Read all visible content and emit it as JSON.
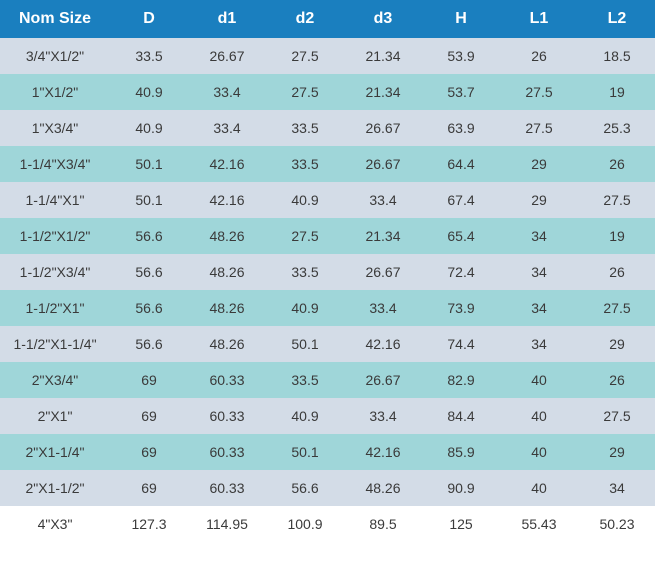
{
  "table": {
    "header_bg": "#1a7fbf",
    "header_color": "#ffffff",
    "row_even_bg": "#d3dce7",
    "row_odd_bg": "#9fd6d9",
    "row_last_bg": "#ffffff",
    "text_color": "#3a3a3a",
    "header_fontsize": 16,
    "cell_fontsize": 14,
    "columns": [
      "Nom Size",
      "D",
      "d1",
      "d2",
      "d3",
      "H",
      "L1",
      "L2"
    ],
    "rows": [
      [
        "3/4\"X1/2\"",
        "33.5",
        "26.67",
        "27.5",
        "21.34",
        "53.9",
        "26",
        "18.5"
      ],
      [
        "1\"X1/2\"",
        "40.9",
        "33.4",
        "27.5",
        "21.34",
        "53.7",
        "27.5",
        "19"
      ],
      [
        "1\"X3/4\"",
        "40.9",
        "33.4",
        "33.5",
        "26.67",
        "63.9",
        "27.5",
        "25.3"
      ],
      [
        "1-1/4\"X3/4\"",
        "50.1",
        "42.16",
        "33.5",
        "26.67",
        "64.4",
        "29",
        "26"
      ],
      [
        "1-1/4\"X1\"",
        "50.1",
        "42.16",
        "40.9",
        "33.4",
        "67.4",
        "29",
        "27.5"
      ],
      [
        "1-1/2\"X1/2\"",
        "56.6",
        "48.26",
        "27.5",
        "21.34",
        "65.4",
        "34",
        "19"
      ],
      [
        "1-1/2\"X3/4\"",
        "56.6",
        "48.26",
        "33.5",
        "26.67",
        "72.4",
        "34",
        "26"
      ],
      [
        "1-1/2\"X1\"",
        "56.6",
        "48.26",
        "40.9",
        "33.4",
        "73.9",
        "34",
        "27.5"
      ],
      [
        "1-1/2\"X1-1/4\"",
        "56.6",
        "48.26",
        "50.1",
        "42.16",
        "74.4",
        "34",
        "29"
      ],
      [
        "2\"X3/4\"",
        "69",
        "60.33",
        "33.5",
        "26.67",
        "82.9",
        "40",
        "26"
      ],
      [
        "2\"X1\"",
        "69",
        "60.33",
        "40.9",
        "33.4",
        "84.4",
        "40",
        "27.5"
      ],
      [
        "2\"X1-1/4\"",
        "69",
        "60.33",
        "50.1",
        "42.16",
        "85.9",
        "40",
        "29"
      ],
      [
        "2\"X1-1/2\"",
        "69",
        "60.33",
        "56.6",
        "48.26",
        "90.9",
        "40",
        "34"
      ],
      [
        "4\"X3\"",
        "127.3",
        "114.95",
        "100.9",
        "89.5",
        "125",
        "55.43",
        "50.23"
      ]
    ]
  }
}
